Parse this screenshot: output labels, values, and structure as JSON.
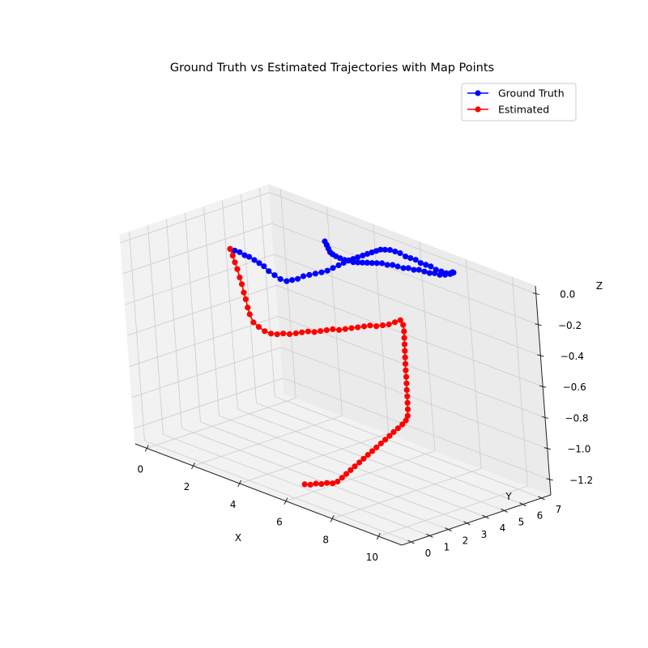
{
  "chart_data": {
    "type": "line",
    "title": "Ground Truth vs Estimated Trajectories with Map Points",
    "xlabel": "X",
    "ylabel": "Y",
    "zlabel": "Z",
    "xlim": [
      -0.5,
      11
    ],
    "ylim": [
      -0.5,
      7.5
    ],
    "zlim": [
      -1.3,
      0.05
    ],
    "x_ticks": [
      "0",
      "2",
      "4",
      "6",
      "8",
      "10"
    ],
    "y_ticks": [
      "0",
      "1",
      "2",
      "3",
      "4",
      "5",
      "6",
      "7"
    ],
    "z_ticks": [
      "0.0",
      "−0.2",
      "−0.4",
      "−0.6",
      "−0.8",
      "−1.0",
      "−1.2"
    ],
    "legend_position": "top-right",
    "grid": true,
    "series": [
      {
        "name": "Ground Truth",
        "color": "#0000ff",
        "marker": "circle",
        "points": [
          [
            0.0,
            4.63,
            -0.22
          ],
          [
            0.19,
            4.64,
            -0.22
          ],
          [
            0.39,
            4.66,
            -0.22
          ],
          [
            0.58,
            4.68,
            -0.23
          ],
          [
            0.77,
            4.69,
            -0.23
          ],
          [
            0.97,
            4.71,
            -0.24
          ],
          [
            1.16,
            4.73,
            -0.25
          ],
          [
            1.35,
            4.74,
            -0.26
          ],
          [
            1.55,
            4.74,
            -0.28
          ],
          [
            1.72,
            4.83,
            -0.3
          ],
          [
            1.88,
            4.93,
            -0.32
          ],
          [
            2.04,
            5.06,
            -0.33
          ],
          [
            2.18,
            5.19,
            -0.32
          ],
          [
            2.32,
            5.32,
            -0.31
          ],
          [
            2.46,
            5.46,
            -0.29
          ],
          [
            2.6,
            5.61,
            -0.28
          ],
          [
            2.74,
            5.77,
            -0.27
          ],
          [
            2.88,
            5.93,
            -0.26
          ],
          [
            3.0,
            6.1,
            -0.25
          ],
          [
            3.14,
            6.24,
            -0.23
          ],
          [
            3.28,
            6.38,
            -0.21
          ],
          [
            3.43,
            6.48,
            -0.19
          ],
          [
            3.59,
            6.56,
            -0.17
          ],
          [
            3.77,
            6.59,
            -0.15
          ],
          [
            3.95,
            6.62,
            -0.13
          ],
          [
            4.14,
            6.66,
            -0.11
          ],
          [
            4.33,
            6.69,
            -0.09
          ],
          [
            4.52,
            6.71,
            -0.07
          ],
          [
            4.71,
            6.72,
            -0.05
          ],
          [
            4.91,
            6.71,
            -0.03
          ],
          [
            5.1,
            6.72,
            -0.02
          ],
          [
            5.31,
            6.73,
            -0.01
          ],
          [
            5.51,
            6.76,
            -0.01
          ],
          [
            5.71,
            6.78,
            -0.01
          ],
          [
            5.92,
            6.8,
            -0.02
          ],
          [
            6.12,
            6.82,
            -0.02
          ],
          [
            6.33,
            6.84,
            -0.02
          ],
          [
            6.53,
            6.85,
            -0.03
          ],
          [
            6.74,
            6.87,
            -0.03
          ],
          [
            6.94,
            6.89,
            -0.03
          ],
          [
            7.15,
            6.9,
            -0.04
          ],
          [
            7.36,
            6.92,
            -0.04
          ],
          [
            7.56,
            6.93,
            -0.04
          ],
          [
            7.75,
            6.93,
            -0.03
          ],
          [
            7.92,
            6.85,
            -0.01
          ],
          [
            8.06,
            6.73,
            0.0
          ],
          [
            8.15,
            6.58,
            0.01
          ],
          [
            8.17,
            6.42,
            0.01
          ],
          [
            8.02,
            6.33,
            0.0
          ],
          [
            7.82,
            6.29,
            -0.01
          ],
          [
            7.62,
            6.26,
            -0.01
          ],
          [
            7.41,
            6.24,
            -0.02
          ],
          [
            7.21,
            6.21,
            -0.02
          ],
          [
            7.0,
            6.18,
            -0.02
          ],
          [
            6.8,
            6.15,
            -0.03
          ],
          [
            6.59,
            6.12,
            -0.03
          ],
          [
            6.39,
            6.09,
            -0.04
          ],
          [
            6.18,
            6.05,
            -0.04
          ],
          [
            5.98,
            6.02,
            -0.04
          ],
          [
            5.77,
            5.99,
            -0.05
          ],
          [
            5.57,
            5.96,
            -0.05
          ],
          [
            5.36,
            5.94,
            -0.06
          ],
          [
            5.16,
            5.92,
            -0.07
          ],
          [
            4.95,
            5.91,
            -0.08
          ],
          [
            4.75,
            5.9,
            -0.09
          ],
          [
            4.55,
            5.9,
            -0.1
          ],
          [
            4.35,
            5.9,
            -0.11
          ],
          [
            4.14,
            5.91,
            -0.11
          ],
          [
            3.94,
            5.93,
            -0.12
          ],
          [
            3.74,
            5.94,
            -0.12
          ],
          [
            3.54,
            5.96,
            -0.12
          ],
          [
            3.35,
            6.02,
            -0.12
          ],
          [
            3.18,
            6.1,
            -0.12
          ],
          [
            3.02,
            6.21,
            -0.11
          ],
          [
            2.87,
            6.32,
            -0.1
          ],
          [
            2.71,
            6.42,
            -0.09
          ]
        ]
      },
      {
        "name": "Estimated",
        "color": "#ff0000",
        "marker": "circle",
        "points": [
          [
            0.0,
            4.63,
            -0.22
          ],
          [
            0.17,
            4.54,
            -0.25
          ],
          [
            0.33,
            4.44,
            -0.28
          ],
          [
            0.5,
            4.34,
            -0.31
          ],
          [
            0.67,
            4.23,
            -0.35
          ],
          [
            0.83,
            4.13,
            -0.38
          ],
          [
            0.99,
            4.01,
            -0.42
          ],
          [
            1.15,
            3.9,
            -0.45
          ],
          [
            1.31,
            3.78,
            -0.49
          ],
          [
            1.47,
            3.67,
            -0.52
          ],
          [
            1.65,
            3.62,
            -0.56
          ],
          [
            1.84,
            3.66,
            -0.58
          ],
          [
            2.02,
            3.74,
            -0.6
          ],
          [
            2.2,
            3.85,
            -0.61
          ],
          [
            2.37,
            3.97,
            -0.61
          ],
          [
            2.54,
            4.09,
            -0.6
          ],
          [
            2.71,
            4.22,
            -0.6
          ],
          [
            2.88,
            4.35,
            -0.59
          ],
          [
            3.04,
            4.48,
            -0.58
          ],
          [
            3.21,
            4.61,
            -0.57
          ],
          [
            3.37,
            4.75,
            -0.57
          ],
          [
            3.53,
            4.88,
            -0.56
          ],
          [
            3.7,
            5.01,
            -0.55
          ],
          [
            3.86,
            5.14,
            -0.54
          ],
          [
            4.03,
            5.27,
            -0.54
          ],
          [
            4.2,
            5.4,
            -0.53
          ],
          [
            4.37,
            5.53,
            -0.52
          ],
          [
            4.54,
            5.66,
            -0.51
          ],
          [
            4.71,
            5.79,
            -0.5
          ],
          [
            4.87,
            5.92,
            -0.49
          ],
          [
            5.04,
            6.05,
            -0.49
          ],
          [
            5.21,
            6.18,
            -0.48
          ],
          [
            5.38,
            6.31,
            -0.47
          ],
          [
            5.56,
            6.42,
            -0.45
          ],
          [
            5.74,
            6.5,
            -0.43
          ],
          [
            5.89,
            6.45,
            -0.45
          ],
          [
            6.01,
            6.33,
            -0.48
          ],
          [
            6.12,
            6.19,
            -0.51
          ],
          [
            6.23,
            6.05,
            -0.54
          ],
          [
            6.34,
            5.91,
            -0.57
          ],
          [
            6.45,
            5.77,
            -0.6
          ],
          [
            6.56,
            5.63,
            -0.63
          ],
          [
            6.67,
            5.49,
            -0.66
          ],
          [
            6.79,
            5.35,
            -0.69
          ],
          [
            6.9,
            5.21,
            -0.72
          ],
          [
            7.01,
            5.07,
            -0.75
          ],
          [
            7.12,
            4.94,
            -0.78
          ],
          [
            7.23,
            4.8,
            -0.81
          ],
          [
            7.34,
            4.66,
            -0.84
          ],
          [
            7.44,
            4.51,
            -0.87
          ],
          [
            7.49,
            4.34,
            -0.89
          ],
          [
            7.47,
            4.16,
            -0.91
          ],
          [
            7.42,
            3.98,
            -0.93
          ],
          [
            7.37,
            3.79,
            -0.95
          ],
          [
            7.33,
            3.61,
            -0.97
          ],
          [
            7.28,
            3.43,
            -0.99
          ],
          [
            7.23,
            3.25,
            -1.01
          ],
          [
            7.18,
            3.06,
            -1.03
          ],
          [
            7.13,
            2.88,
            -1.05
          ],
          [
            7.08,
            2.7,
            -1.07
          ],
          [
            7.03,
            2.52,
            -1.09
          ],
          [
            6.98,
            2.34,
            -1.11
          ],
          [
            6.93,
            2.15,
            -1.13
          ],
          [
            6.88,
            1.97,
            -1.15
          ],
          [
            6.83,
            1.79,
            -1.17
          ],
          [
            6.78,
            1.61,
            -1.19
          ],
          [
            6.73,
            1.42,
            -1.21
          ],
          [
            6.64,
            1.26,
            -1.22
          ],
          [
            6.5,
            1.13,
            -1.22
          ],
          [
            6.36,
            1.0,
            -1.23
          ],
          [
            6.22,
            0.88,
            -1.23
          ],
          [
            6.08,
            0.75,
            -1.24
          ],
          [
            5.94,
            0.62,
            -1.24
          ]
        ]
      }
    ]
  }
}
